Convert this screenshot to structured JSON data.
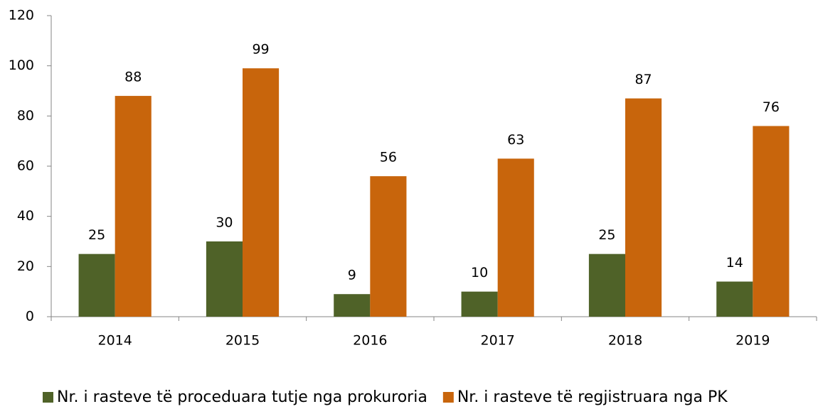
{
  "chart_data": {
    "type": "bar",
    "categories": [
      "2014",
      "2015",
      "2016",
      "2017",
      "2018",
      "2019"
    ],
    "series": [
      {
        "name": "Nr. i rasteve të proceduara tutje nga prokuroria",
        "color": "#4f6228",
        "values": [
          25,
          30,
          9,
          10,
          25,
          14
        ]
      },
      {
        "name": "Nr. i rasteve të regjistruara nga PK",
        "color": "#c8650c",
        "values": [
          88,
          99,
          56,
          63,
          87,
          76
        ]
      }
    ],
    "ylim": [
      0,
      120
    ],
    "yticks": [
      0,
      20,
      40,
      60,
      80,
      100,
      120
    ],
    "grid": false,
    "legend": "bottom"
  }
}
